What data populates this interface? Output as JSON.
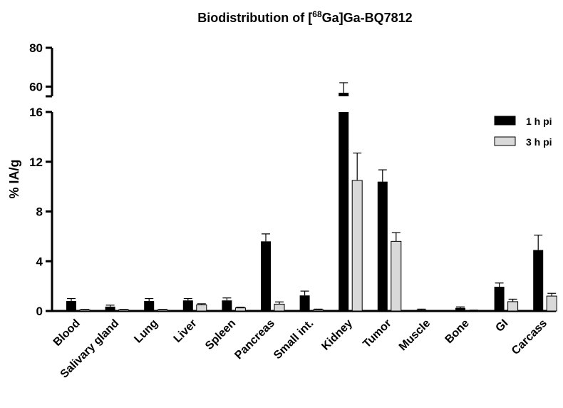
{
  "chart_data": {
    "type": "bar",
    "title_prefix": "Biodistribution of [",
    "title_sup": "68",
    "title_suffix": "Ga]Ga-BQ7812",
    "ylabel": "% IA/g",
    "xlabel": "",
    "y_break": true,
    "ylim_lower": [
      0,
      16
    ],
    "ylim_upper": [
      55,
      80
    ],
    "yticks_lower": [
      "0",
      "4",
      "8",
      "12",
      "16"
    ],
    "yticks_upper": [
      "60",
      "80"
    ],
    "legend_position": "top-right",
    "categories": [
      "Blood",
      "Salivary gland",
      "Lung",
      "Liver",
      "Spleen",
      "Pancreas",
      "Small int.",
      "Kidney",
      "Tumor",
      "Muscle",
      "Bone",
      "GI",
      "Carcass"
    ],
    "series": [
      {
        "name": "1 h pi",
        "color": "#000000",
        "values": [
          0.8,
          0.35,
          0.8,
          0.85,
          0.85,
          5.6,
          1.25,
          56.8,
          10.4,
          0.1,
          0.25,
          1.95,
          4.9
        ],
        "errors": [
          0.2,
          0.12,
          0.2,
          0.15,
          0.2,
          0.6,
          0.35,
          5.2,
          0.95,
          0.05,
          0.08,
          0.3,
          1.2
        ]
      },
      {
        "name": "3 h pi",
        "color": "#d9d9d9",
        "values": [
          0.1,
          0.1,
          0.1,
          0.5,
          0.25,
          0.55,
          0.1,
          10.5,
          5.6,
          0.0,
          0.05,
          0.75,
          1.2
        ],
        "errors": [
          0.03,
          0.03,
          0.03,
          0.08,
          0.06,
          0.18,
          0.05,
          2.2,
          0.7,
          0.0,
          0.02,
          0.2,
          0.22
        ]
      }
    ]
  }
}
